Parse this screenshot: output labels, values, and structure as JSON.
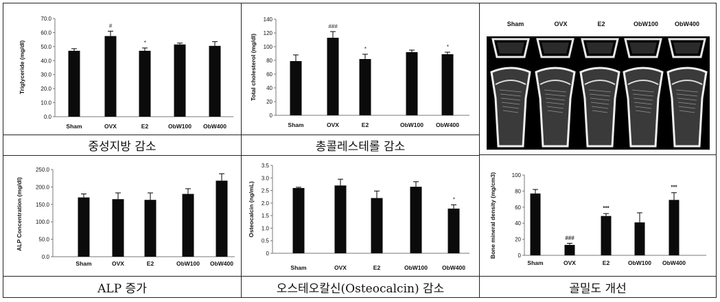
{
  "chart_data": [
    {
      "type": "bar",
      "ylabel": "Triglyceride (mg/dl)",
      "categories": [
        "Sham",
        "OVX",
        "E2",
        "ObW100",
        "ObW400"
      ],
      "values": [
        47,
        57.5,
        47,
        51.5,
        50.5
      ],
      "errors": [
        1.5,
        3.5,
        2,
        1,
        3
      ],
      "annotations": [
        "",
        "#",
        "*",
        "",
        ""
      ],
      "ylim": [
        0,
        70
      ],
      "ticks": [
        "0.0",
        "10.0",
        "20.0",
        "30.0",
        "40.0",
        "50.0",
        "60.0",
        "70.0"
      ],
      "caption": "중성지방 감소"
    },
    {
      "type": "bar",
      "ylabel": "Total cholesterol (mg/dl)",
      "categories": [
        "Sham",
        "OVX",
        "E2",
        "ObW100",
        "ObW400"
      ],
      "values": [
        79,
        113,
        82,
        92,
        89
      ],
      "errors": [
        9,
        9,
        7,
        3,
        3
      ],
      "annotations": [
        "",
        "###",
        "*",
        "",
        "*"
      ],
      "ylim": [
        0,
        140
      ],
      "ticks": [
        "0",
        "20",
        "40",
        "60",
        "80",
        "100",
        "120",
        "140"
      ],
      "caption": "총콜레스테롤 감소"
    },
    {
      "type": "bar",
      "ylabel": "ALP Concentration (mg/dl)",
      "categories": [
        "Sham",
        "OVX",
        "E2",
        "ObW100",
        "ObW400"
      ],
      "values": [
        170,
        165,
        163,
        180,
        218
      ],
      "errors": [
        10,
        18,
        20,
        15,
        20
      ],
      "annotations": [
        "",
        "",
        "",
        "",
        ""
      ],
      "ylim": [
        0,
        250
      ],
      "ticks": [
        "0.0",
        "50.0",
        "100.0",
        "150.0",
        "200.0",
        "250.0"
      ],
      "caption": "ALP 증가"
    },
    {
      "type": "bar",
      "ylabel": "Osteocalcin (ng/mL)",
      "categories": [
        "Sham",
        "OVX",
        "E2",
        "ObW100",
        "ObW400"
      ],
      "values": [
        2.6,
        2.7,
        2.2,
        2.65,
        1.78
      ],
      "errors": [
        0.03,
        0.25,
        0.28,
        0.2,
        0.15
      ],
      "annotations": [
        "",
        "",
        "",
        "",
        "*"
      ],
      "ylim": [
        0,
        3.5
      ],
      "ticks": [
        "0",
        "0.5",
        "1.0",
        "1.5",
        "2.0",
        "2.5",
        "3.0",
        "3.5"
      ],
      "caption": "오스테오칼신(Osteocalcin) 감소"
    },
    {
      "type": "bar",
      "ylabel": "Bone mineral density (mg/cm3)",
      "categories": [
        "Sham",
        "OVX",
        "E2",
        "ObW100",
        "ObW400"
      ],
      "values": [
        77,
        13,
        49,
        41,
        69
      ],
      "errors": [
        5,
        2,
        3,
        12,
        9
      ],
      "annotations": [
        "",
        "###",
        "***",
        "",
        "***"
      ],
      "ylim": [
        0,
        100
      ],
      "ticks": [
        "0",
        "20",
        "40",
        "60",
        "80",
        "100"
      ],
      "caption": "골밀도 개선"
    }
  ],
  "microct": {
    "labels": [
      "Sham",
      "OVX",
      "E2",
      "ObW100",
      "ObW400"
    ]
  },
  "colors": {
    "bar": "#0b0b0b",
    "border": "#222222",
    "image_bg": "#000000"
  }
}
